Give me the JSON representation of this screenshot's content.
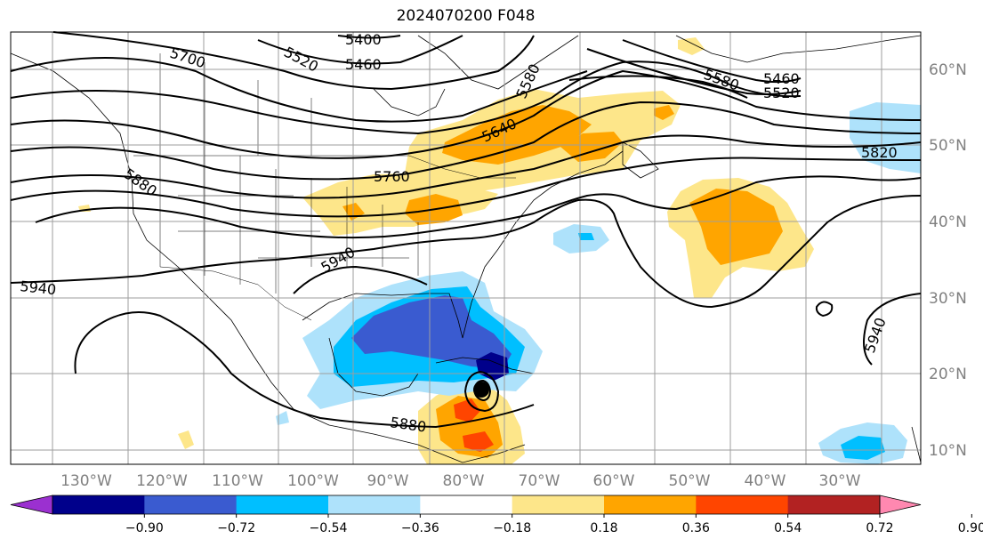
{
  "title": "2024070200 F048",
  "lon_labels": [
    "130°W",
    "120°W",
    "110°W",
    "100°W",
    "90°W",
    "80°W",
    "70°W",
    "60°W",
    "50°W",
    "40°W",
    "30°W"
  ],
  "lat_labels": [
    "60°N",
    "50°N",
    "40°N",
    "30°N",
    "20°N",
    "10°N"
  ],
  "contour_labels": [
    "5400",
    "5460",
    "5520",
    "5700",
    "5580",
    "5460",
    "5520",
    "5580",
    "5640",
    "5760",
    "5820",
    "5880",
    "5940",
    "5940",
    "5940",
    "5880"
  ],
  "colorbar": {
    "ticks": [
      "−0.90",
      "−0.72",
      "−0.54",
      "−0.36",
      "−0.18",
      "0.18",
      "0.36",
      "0.54",
      "0.72",
      "0.90"
    ],
    "colors": [
      "#9b30d0",
      "#00008b",
      "#3a5bd0",
      "#00bfff",
      "#aee2fb",
      "#ffffff",
      "#fde68a",
      "#ffa500",
      "#ff4500",
      "#b22222",
      "#ff88b0"
    ]
  },
  "anomaly_colors": {
    "dark_blue": "#00008b",
    "blue": "#3a5bd0",
    "cyan": "#00bfff",
    "light_blue": "#aee2fb",
    "light_yellow": "#fde68a",
    "orange": "#ffa500",
    "red_orange": "#ff4500",
    "red": "#b22222"
  },
  "storm_marker": "storm-center"
}
